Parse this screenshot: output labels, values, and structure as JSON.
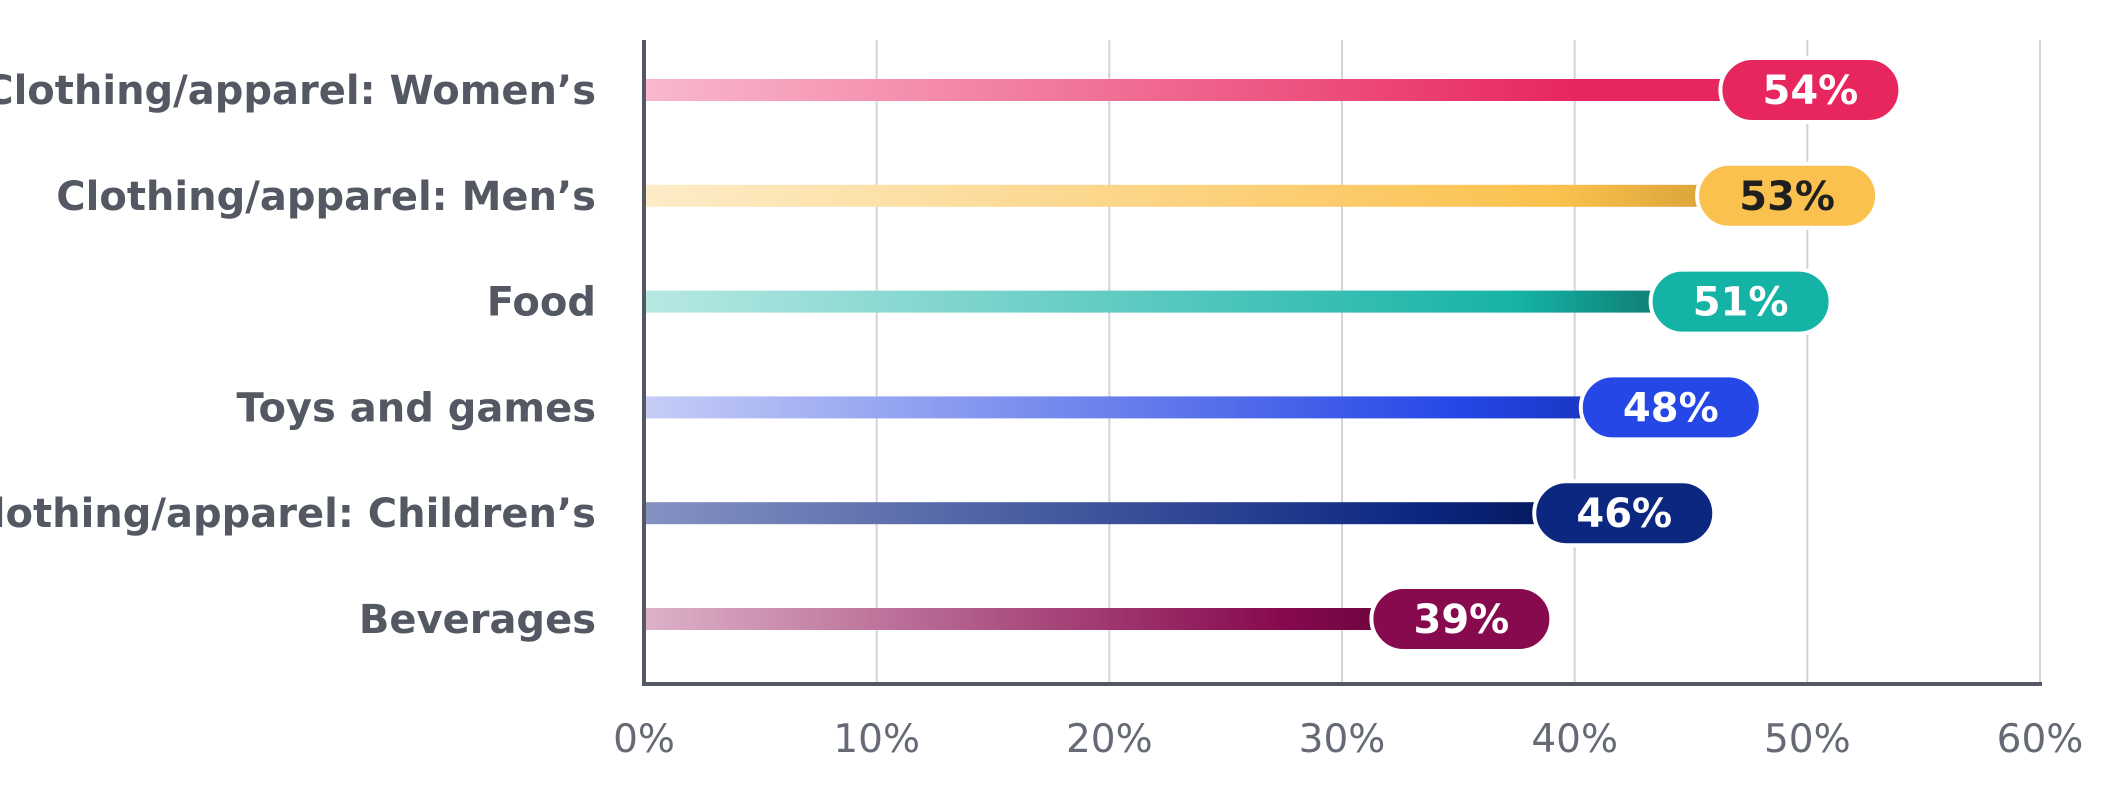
{
  "chart_data": {
    "type": "bar",
    "orientation": "horizontal",
    "title": "",
    "xlabel": "",
    "ylabel": "",
    "categories": [
      "Clothing/apparel: Women’s",
      "Clothing/apparel: Men’s",
      "Food",
      "Toys and games",
      "Clothing/apparel: Children’s",
      "Beverages"
    ],
    "values": [
      54,
      53,
      51,
      48,
      46,
      39
    ],
    "value_labels": [
      "54%",
      "53%",
      "51%",
      "48%",
      "46%",
      "39%"
    ],
    "xlim": [
      0,
      60
    ],
    "x_ticks": [
      0,
      10,
      20,
      30,
      40,
      50,
      60
    ],
    "x_tick_labels": [
      "0%",
      "10%",
      "20%",
      "30%",
      "40%",
      "50%",
      "60%"
    ],
    "grid": "vertical",
    "legend": "none",
    "colors": [
      {
        "light": "#f9b8cd",
        "solid": "#e8265e",
        "end": "#e8265e",
        "text": "#ffffff"
      },
      {
        "light": "#fdecc8",
        "solid": "#fbc14e",
        "end": "#dba43a",
        "text": "#1f1f1f"
      },
      {
        "light": "#b8e8e3",
        "solid": "#15b3a6",
        "end": "#0f7c72",
        "text": "#ffffff"
      },
      {
        "light": "#c6cdf6",
        "solid": "#2547e6",
        "end": "#1a36c2",
        "text": "#ffffff"
      },
      {
        "light": "#8592c2",
        "solid": "#0b2780",
        "end": "#051a5e",
        "text": "#ffffff"
      },
      {
        "light": "#ddb2c9",
        "solid": "#880a4e",
        "end": "#6d0540",
        "text": "#ffffff"
      }
    ],
    "axis_color": "#545863",
    "grid_color": "#d3d4d8"
  }
}
